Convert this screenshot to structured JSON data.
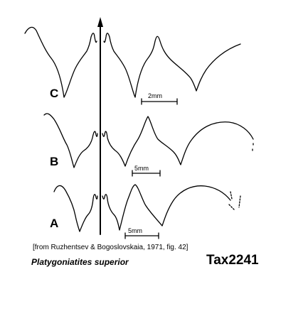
{
  "panels": [
    {
      "label": "C",
      "scale_text": "2mm"
    },
    {
      "label": "B",
      "scale_text": "5mm"
    },
    {
      "label": "A",
      "scale_text": "5mm"
    }
  ],
  "source_caption": "[from Ruzhentsev & Bogoslovskaia, 1971, fig. 42]",
  "species_name": "Platygoniatites superior",
  "specimen_code": "Tax2241",
  "colors": {
    "ink": "#000000",
    "background": "#ffffff"
  }
}
